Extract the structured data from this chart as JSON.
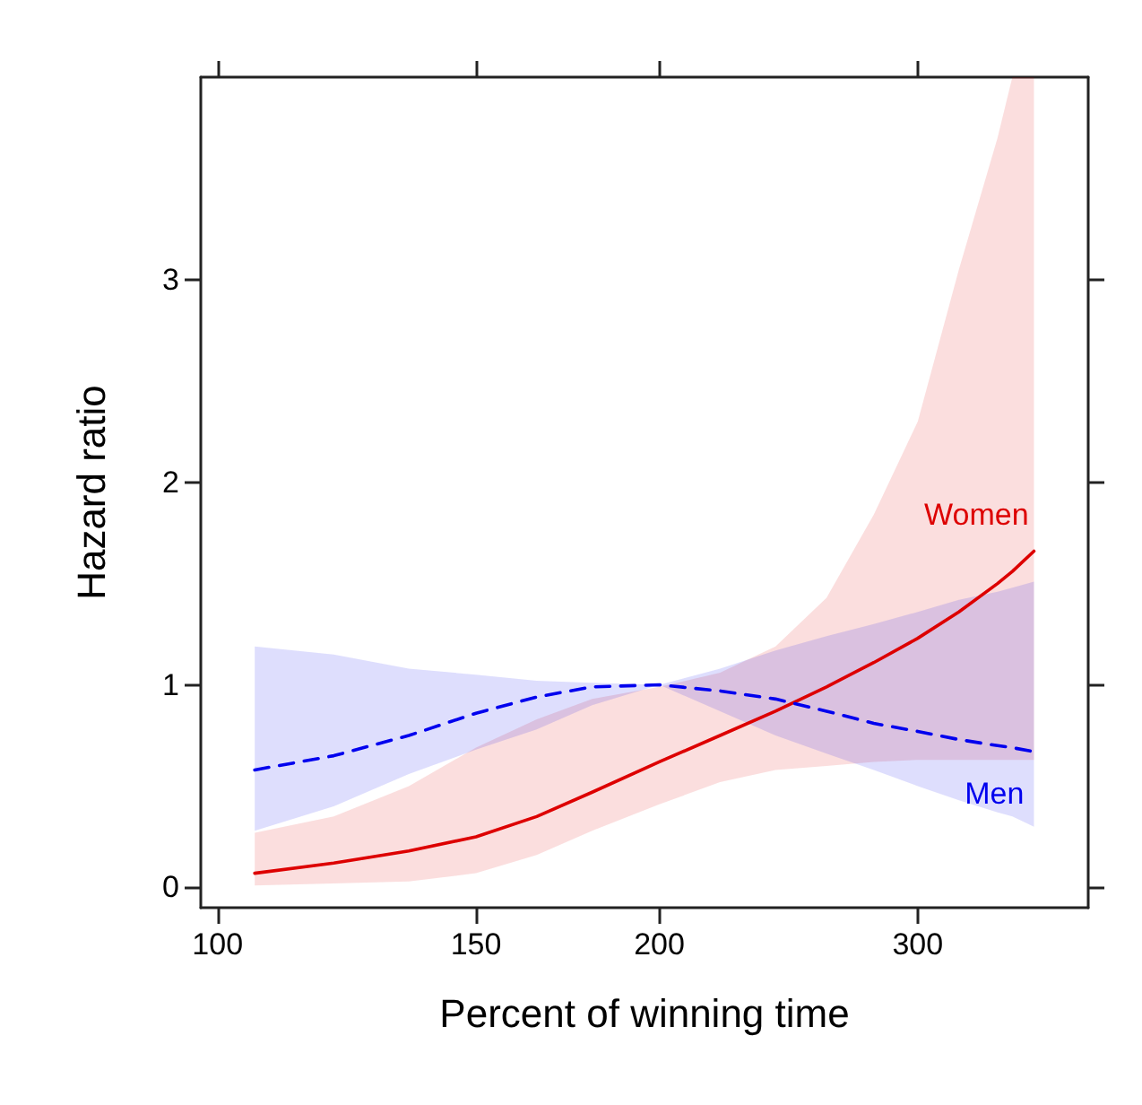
{
  "chart_data": {
    "type": "line",
    "xlabel": "Percent of winning time",
    "ylabel": "Hazard ratio",
    "log": "x",
    "xlim": [
      97.4,
      392
    ],
    "xticks": [
      100,
      150,
      200,
      300
    ],
    "ylim": [
      -0.1,
      4.0
    ],
    "yticks": [
      0,
      1,
      2,
      3
    ],
    "grid": false,
    "legend": false,
    "marker": "none",
    "x": [
      106,
      120,
      135,
      150,
      165,
      180,
      200,
      220,
      240,
      260,
      280,
      300,
      320,
      340,
      348,
      360
    ],
    "series": [
      {
        "name": "Women",
        "color": "#dd0000",
        "line_style": "solid",
        "values": [
          0.07,
          0.12,
          0.18,
          0.25,
          0.35,
          0.47,
          0.62,
          0.75,
          0.87,
          0.99,
          1.11,
          1.23,
          1.36,
          1.5,
          1.56,
          1.66
        ],
        "lower": [
          0.01,
          0.02,
          0.03,
          0.07,
          0.16,
          0.28,
          0.41,
          0.52,
          0.58,
          0.6,
          0.62,
          0.63,
          0.63,
          0.63,
          0.63,
          0.63
        ],
        "upper": [
          0.27,
          0.35,
          0.5,
          0.69,
          0.83,
          0.93,
          0.99,
          1.06,
          1.19,
          1.43,
          1.84,
          2.3,
          3.05,
          3.7,
          4.0,
          4.0
        ]
      },
      {
        "name": "Men",
        "color": "#0000ee",
        "line_style": "dashed",
        "values": [
          0.58,
          0.65,
          0.75,
          0.86,
          0.94,
          0.99,
          1.0,
          0.97,
          0.93,
          0.87,
          0.81,
          0.77,
          0.73,
          0.7,
          0.69,
          0.67
        ],
        "lower": [
          0.28,
          0.4,
          0.56,
          0.68,
          0.78,
          0.9,
          1.0,
          0.87,
          0.75,
          0.66,
          0.58,
          0.5,
          0.43,
          0.37,
          0.35,
          0.3
        ],
        "upper": [
          1.19,
          1.15,
          1.08,
          1.05,
          1.02,
          1.01,
          1.0,
          1.08,
          1.17,
          1.24,
          1.3,
          1.36,
          1.42,
          1.46,
          1.48,
          1.51
        ]
      }
    ]
  }
}
